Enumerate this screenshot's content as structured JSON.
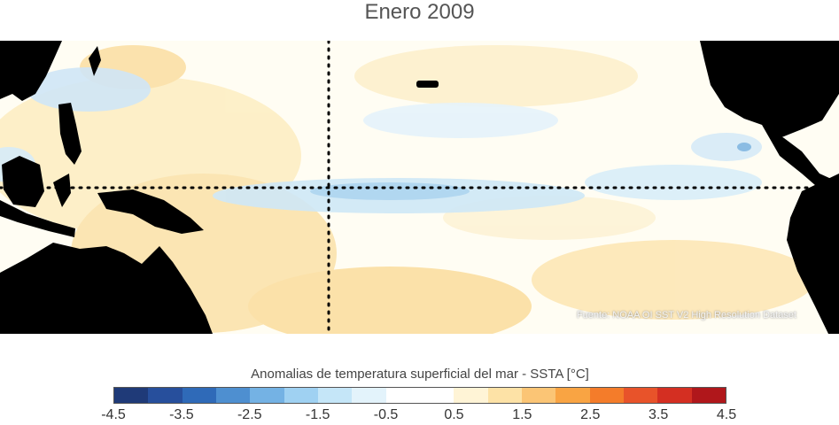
{
  "title": "Enero 2009",
  "source_note": "Fuente: NOAA OI SST V2 High Resolution Dataset",
  "colorbar": {
    "label": "Anomalias de temperatura superficial del mar - SSTA  [°C]",
    "colors": [
      "#1f3a78",
      "#274f9c",
      "#2f6ab8",
      "#4e8fd0",
      "#74b2e4",
      "#9fd1f2",
      "#c5e6f8",
      "#e3f3fb",
      "#ffffff",
      "#ffffff",
      "#fff4d6",
      "#fde2a6",
      "#fbc575",
      "#f9a443",
      "#f47c2a",
      "#e8532a",
      "#d42f22",
      "#b0171b"
    ],
    "ticks": [
      "-4.5",
      "-3.5",
      "-2.5",
      "-1.5",
      "-0.5",
      "0.5",
      "1.5",
      "2.5",
      "3.5",
      "4.5"
    ]
  },
  "map": {
    "dateline_longitude": 180,
    "equator_latitude": 0
  }
}
